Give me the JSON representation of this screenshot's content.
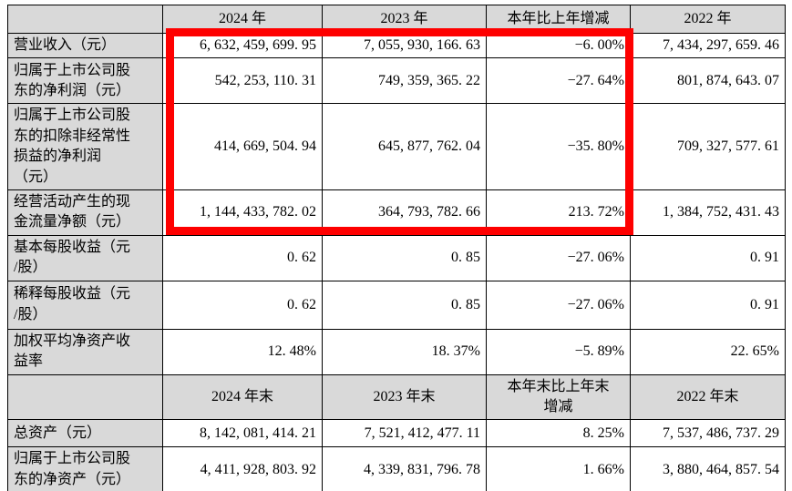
{
  "colors": {
    "header_bg": "#d9d9d9",
    "border": "#000000",
    "highlight_red": "#fe0000",
    "cell_bg": "#ffffff"
  },
  "annual_table": {
    "headers": [
      "",
      "2024 年",
      "2023 年",
      "本年比上年增减",
      "2022 年"
    ],
    "rows": [
      {
        "label": "营业收入（元）",
        "values": [
          "6,632,459,699.95",
          "7,055,930,166.63",
          "-6.00%",
          "7,434,297,659.46"
        ]
      },
      {
        "label": "归属于上市公司股\n东的净利润（元）",
        "values": [
          "542,253,110.31",
          "749,359,365.22",
          "-27.64%",
          "801,874,643.07"
        ]
      },
      {
        "label": "归属于上市公司股\n东的扣除非经常性\n损益的净利润\n（元）",
        "values": [
          "414,669,504.94",
          "645,877,762.04",
          "-35.80%",
          "709,327,577.61"
        ]
      },
      {
        "label": "经营活动产生的现\n金流量净额（元）",
        "values": [
          "1,144,433,782.02",
          "364,793,782.66",
          "213.72%",
          "1,384,752,431.43"
        ]
      },
      {
        "label": "基本每股收益（元\n/股）",
        "values": [
          "0.62",
          "0.85",
          "-27.06%",
          "0.91"
        ]
      },
      {
        "label": "稀释每股收益（元\n/股）",
        "values": [
          "0.62",
          "0.85",
          "-27.06%",
          "0.91"
        ]
      },
      {
        "label": "加权平均净资产收\n益率",
        "values": [
          "12.48%",
          "18.37%",
          "-5.89%",
          "22.65%"
        ]
      }
    ]
  },
  "period_end_table": {
    "headers": [
      "",
      "2024 年末",
      "2023 年末",
      "本年末比上年末\n增减",
      "2022 年末"
    ],
    "rows": [
      {
        "label": "总资产（元）",
        "values": [
          "8,142,081,414.21",
          "7,521,412,477.11",
          "8.25%",
          "7,537,486,737.29"
        ]
      },
      {
        "label": "归属于上市公司股\n东的净资产（元）",
        "values": [
          "4,411,928,803.92",
          "4,339,831,796.78",
          "1.66%",
          "3,880,464,857.54"
        ]
      }
    ]
  }
}
